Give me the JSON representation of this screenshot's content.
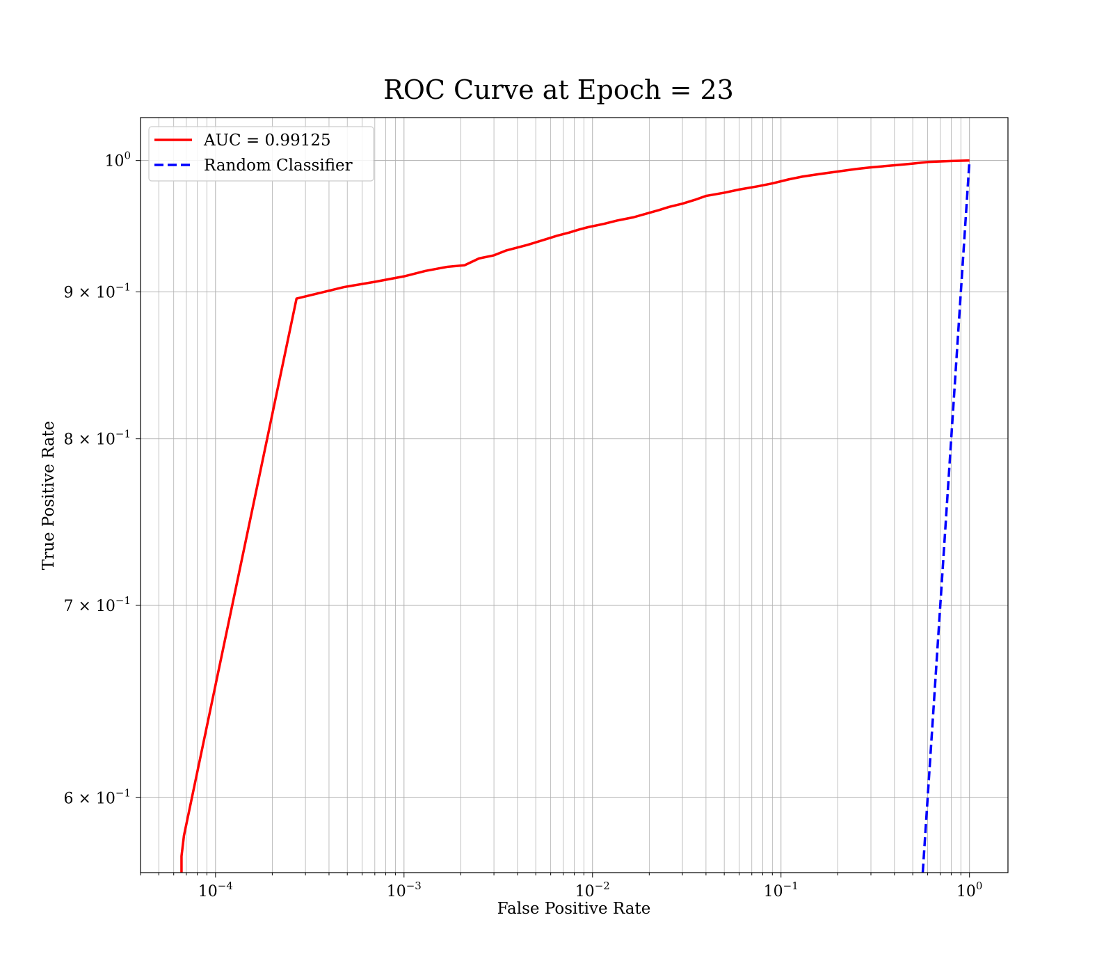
{
  "chart_data": {
    "type": "line",
    "title": "ROC Curve at Epoch = 23",
    "xlabel": "False Positive Rate",
    "ylabel": "True Positive Rate",
    "xscale": "log",
    "yscale": "log",
    "xlim": [
      4e-05,
      1.6
    ],
    "ylim": [
      0.565,
      1.035
    ],
    "grid": true,
    "grid_minor": true,
    "legend_position": "top-left",
    "x_ticks": [
      {
        "value": 0.0001,
        "base": "10",
        "exp": "−4"
      },
      {
        "value": 0.001,
        "base": "10",
        "exp": "−3"
      },
      {
        "value": 0.01,
        "base": "10",
        "exp": "−2"
      },
      {
        "value": 0.1,
        "base": "10",
        "exp": "−1"
      },
      {
        "value": 1,
        "base": "10",
        "exp": "0"
      }
    ],
    "y_ticks": [
      {
        "value": 1.0,
        "mant": "",
        "base": "10",
        "exp": "0"
      },
      {
        "value": 0.9,
        "mant": "9 × ",
        "base": "10",
        "exp": "−1"
      },
      {
        "value": 0.8,
        "mant": "8 × ",
        "base": "10",
        "exp": "−1"
      },
      {
        "value": 0.7,
        "mant": "7 × ",
        "base": "10",
        "exp": "−1"
      },
      {
        "value": 0.6,
        "mant": "6 × ",
        "base": "10",
        "exp": "−1"
      }
    ],
    "series": [
      {
        "name": "AUC = 0.99125",
        "color": "#ff0000",
        "dash": "solid",
        "x": [
          6.6e-05,
          6.6e-05,
          6.8e-05,
          0.000269,
          0.00048,
          0.0007,
          0.001,
          0.0013,
          0.0017,
          0.0021,
          0.0025,
          0.003,
          0.0035,
          0.0045,
          0.0055,
          0.0065,
          0.0075,
          0.0085,
          0.0095,
          0.0115,
          0.0135,
          0.0165,
          0.0195,
          0.0225,
          0.0255,
          0.03,
          0.035,
          0.04,
          0.05,
          0.06,
          0.075,
          0.09,
          0.11,
          0.13,
          0.16,
          0.2,
          0.25,
          0.3,
          0.4,
          0.5,
          0.6,
          0.8,
          1.0
        ],
        "y": [
          0.565,
          0.5725,
          0.582,
          0.8952,
          0.9035,
          0.9073,
          0.9113,
          0.9153,
          0.9183,
          0.9195,
          0.9245,
          0.9268,
          0.9305,
          0.9345,
          0.9383,
          0.9415,
          0.9438,
          0.9462,
          0.948,
          0.9505,
          0.953,
          0.9555,
          0.9585,
          0.961,
          0.9635,
          0.966,
          0.969,
          0.972,
          0.9745,
          0.977,
          0.9795,
          0.9818,
          0.985,
          0.9872,
          0.9892,
          0.9912,
          0.9932,
          0.9945,
          0.9962,
          0.9975,
          0.9988,
          0.9996,
          1.0
        ]
      },
      {
        "name": "Random Classifier",
        "color": "#0000ff",
        "dash": "dashed",
        "x": [
          0.565,
          1.0
        ],
        "y": [
          0.565,
          1.0
        ]
      }
    ]
  }
}
